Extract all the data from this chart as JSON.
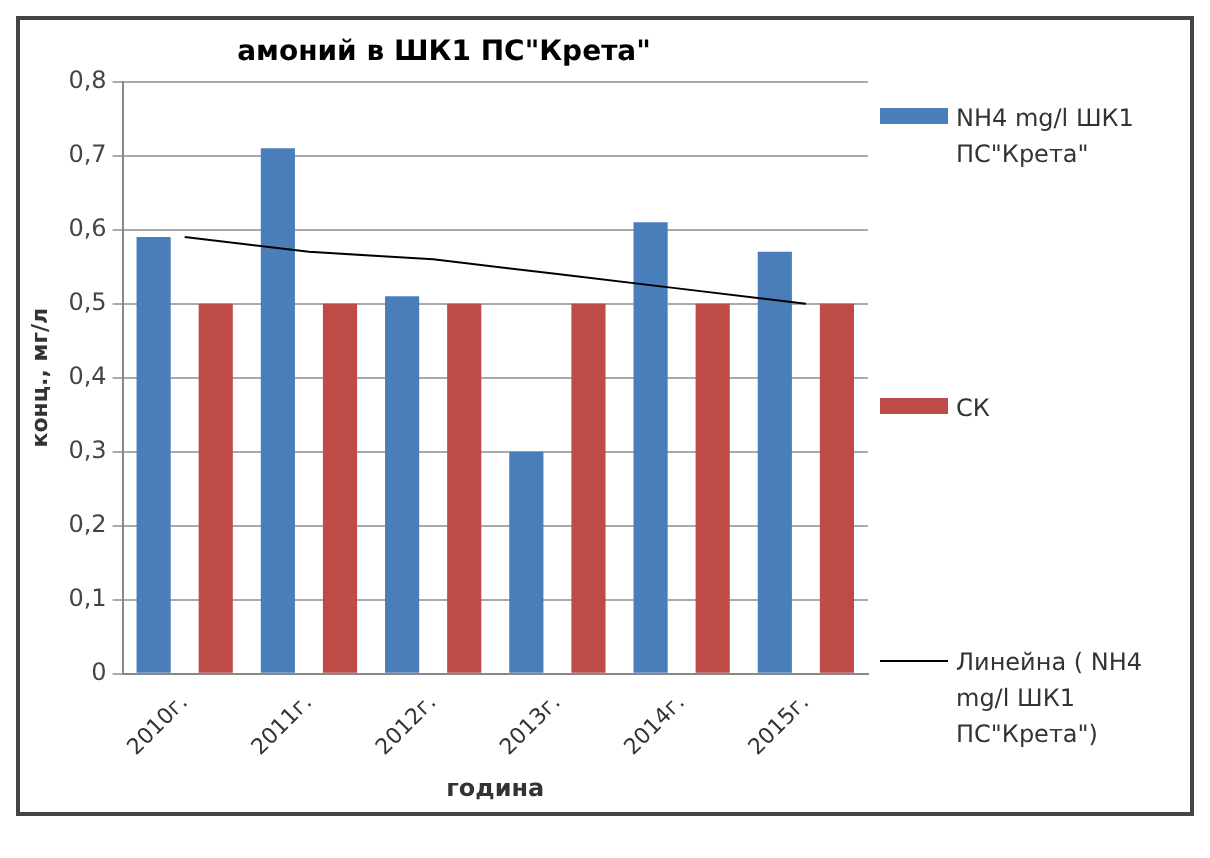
{
  "chart_data": {
    "type": "bar",
    "title": "амоний в ШК1 ПС\"Крета\"",
    "xlabel": "година",
    "ylabel": "конц., мг/л",
    "categories": [
      "2010г.",
      "2011г.",
      "2012г.",
      "2013г.",
      "2014г.",
      "2015г."
    ],
    "series": [
      {
        "name": "NH4  mg/l ШК1 ПС\"Крета\"",
        "color": "#4a7ebb",
        "values": [
          0.59,
          0.71,
          0.51,
          0.3,
          0.61,
          0.57
        ]
      },
      {
        "name": "СК",
        "color": "#be4b48",
        "values": [
          0.5,
          0.5,
          0.5,
          0.5,
          0.5,
          0.5
        ]
      },
      {
        "name": "Линейна ( NH4  mg/l ШК1 ПС\"Крета\")",
        "type": "line",
        "color": "#000000",
        "values": [
          0.59,
          0.57,
          0.56,
          0.54,
          0.52,
          0.5
        ]
      }
    ],
    "ylim": [
      0,
      0.8
    ],
    "yticks": [
      {
        "value": 0,
        "label": "0"
      },
      {
        "value": 0.1,
        "label": "0,1"
      },
      {
        "value": 0.2,
        "label": "0,2"
      },
      {
        "value": 0.3,
        "label": "0,3"
      },
      {
        "value": 0.4,
        "label": "0,4"
      },
      {
        "value": 0.5,
        "label": "0,5"
      },
      {
        "value": 0.6,
        "label": "0,6"
      },
      {
        "value": 0.7,
        "label": "0,7"
      },
      {
        "value": 0.8,
        "label": "0,8"
      }
    ],
    "grid": "y",
    "legend": "right",
    "marker": "none"
  }
}
